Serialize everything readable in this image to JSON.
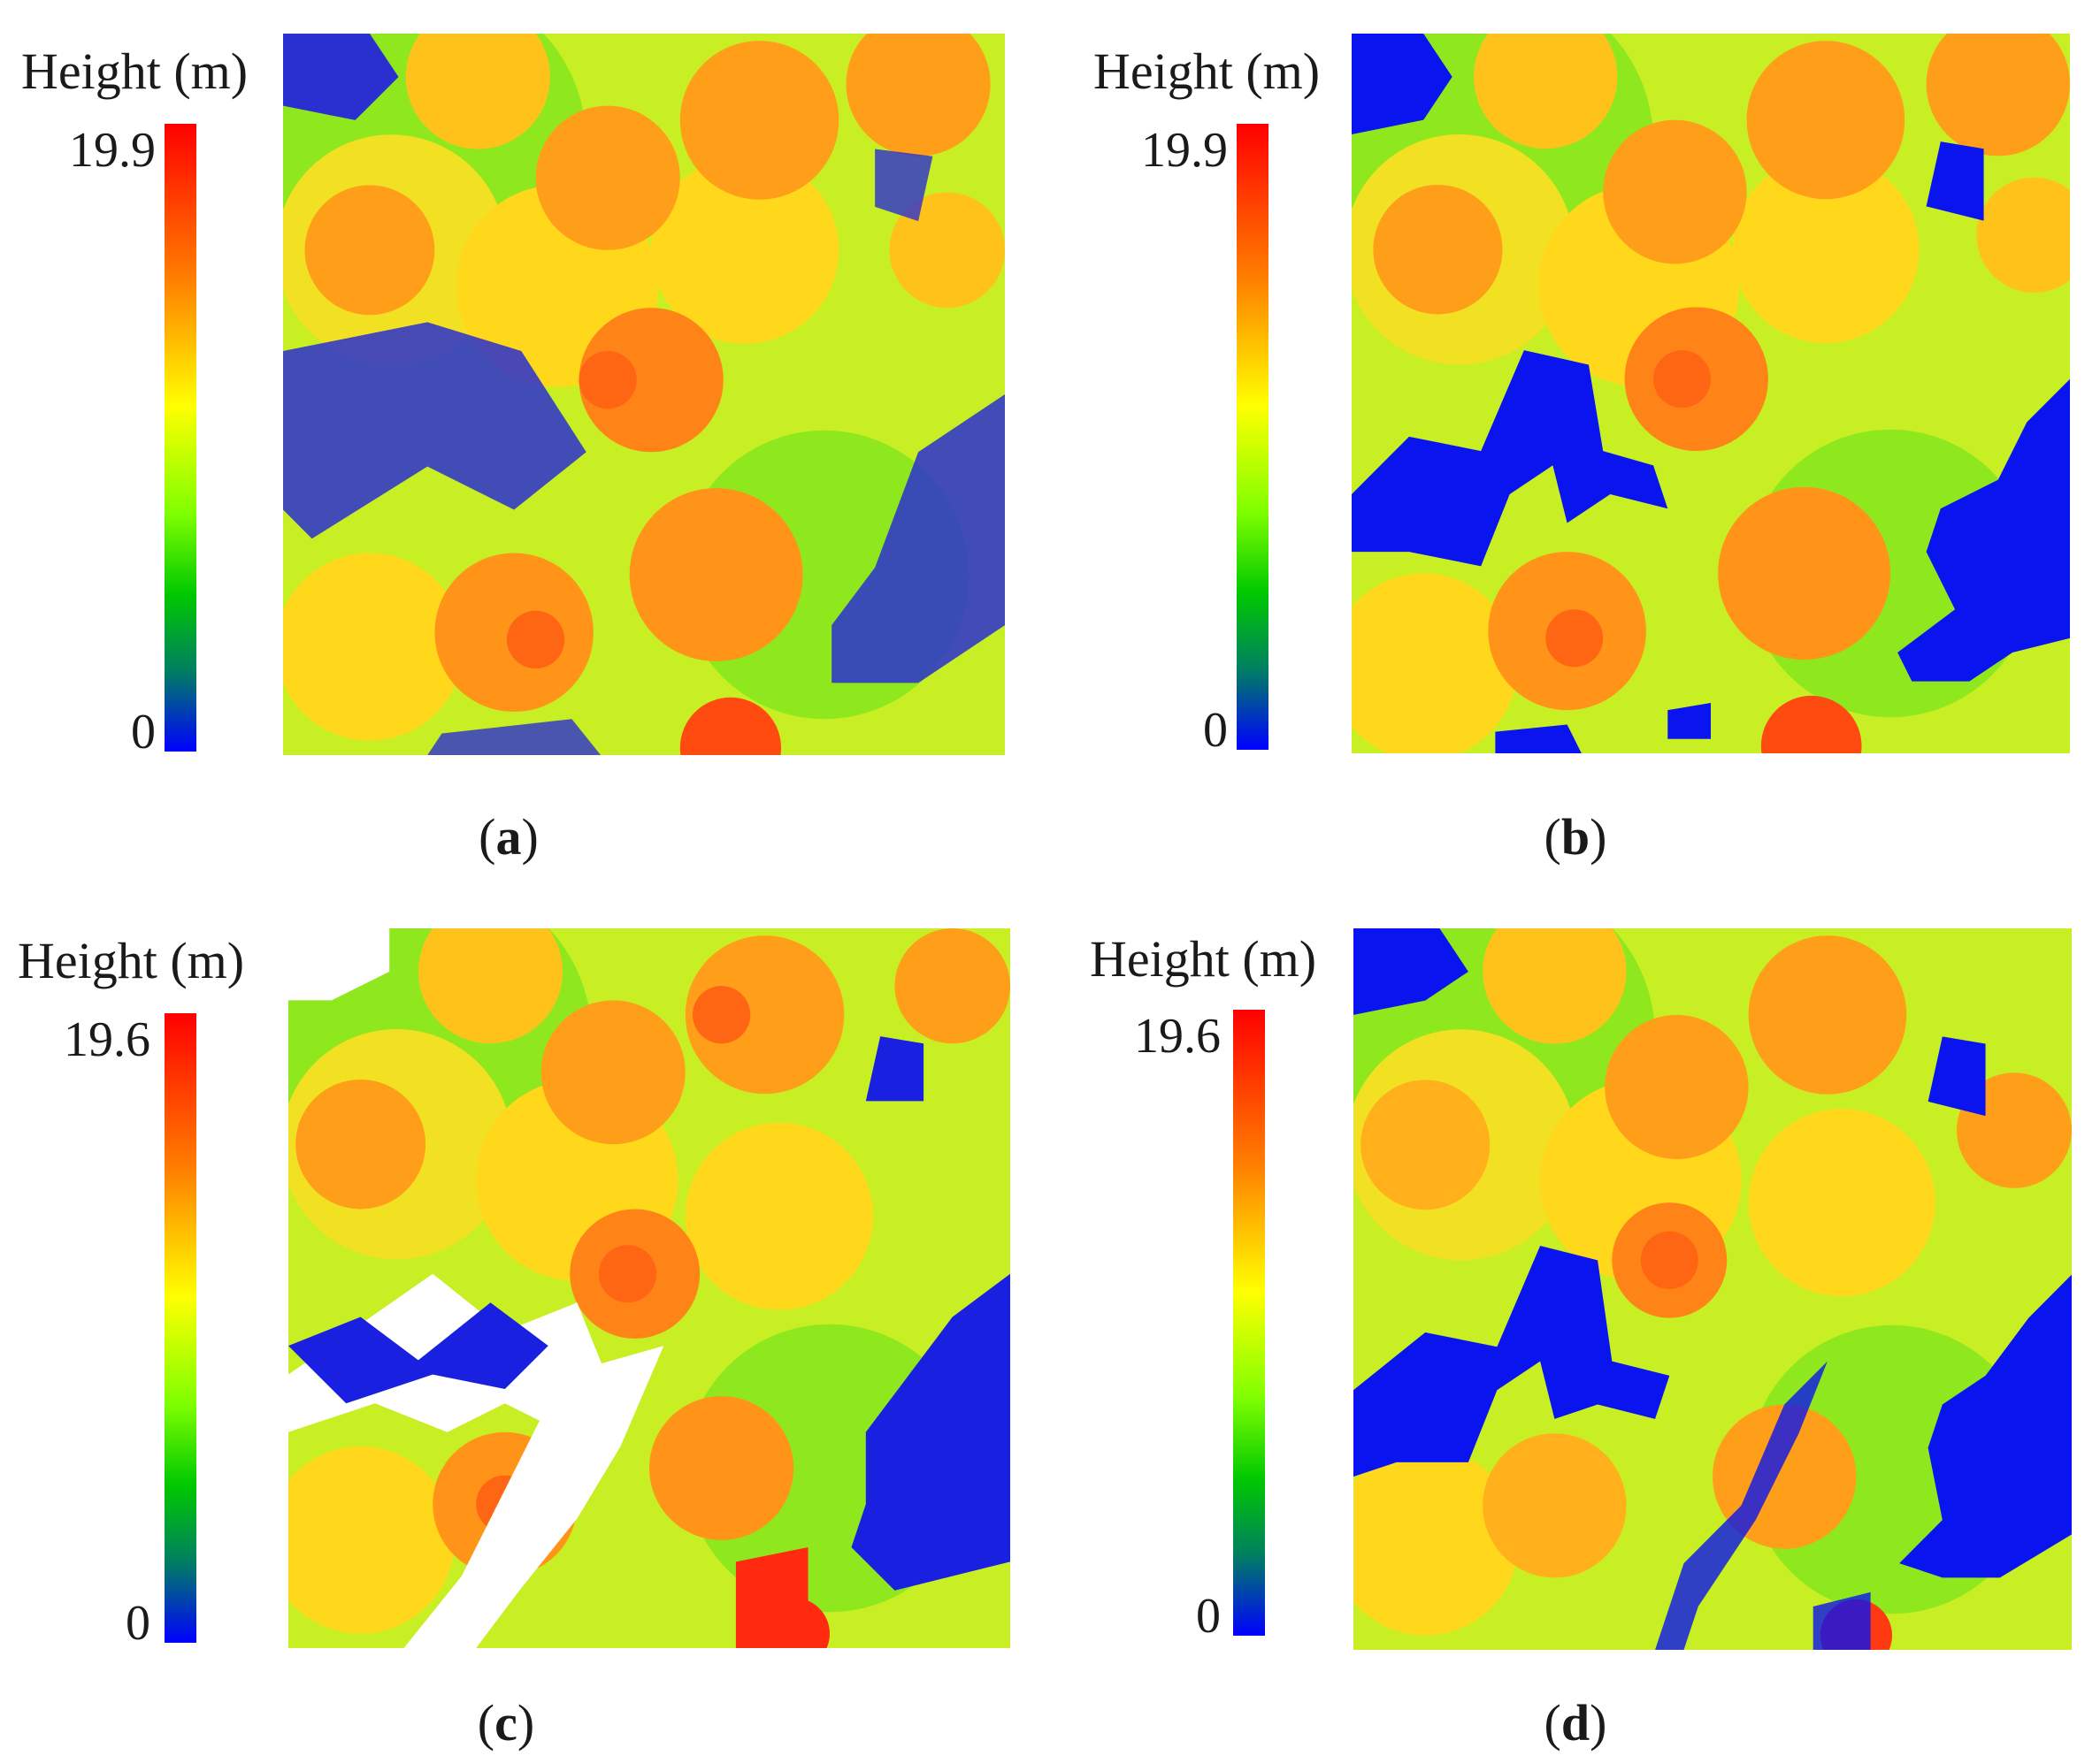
{
  "panels": [
    {
      "id": "a",
      "legend_title": "Height (m)",
      "max": "19.9",
      "min": "0",
      "caption_open": "(",
      "caption_letter": "a",
      "caption_close": ")"
    },
    {
      "id": "b",
      "legend_title": "Height (m)",
      "max": "19.9",
      "min": "0",
      "caption_open": "(",
      "caption_letter": "b",
      "caption_close": ")"
    },
    {
      "id": "c",
      "legend_title": "Height (m)",
      "max": "19.6",
      "min": "0",
      "caption_open": "(",
      "caption_letter": "c",
      "caption_close": ")"
    },
    {
      "id": "d",
      "legend_title": "Height (m)",
      "max": "19.6",
      "min": "0",
      "caption_open": "(",
      "caption_letter": "d",
      "caption_close": ")"
    }
  ],
  "colormap": [
    "#0000ff",
    "#008060",
    "#00c800",
    "#80ff00",
    "#ffff00",
    "#ff8000",
    "#ff0000"
  ]
}
